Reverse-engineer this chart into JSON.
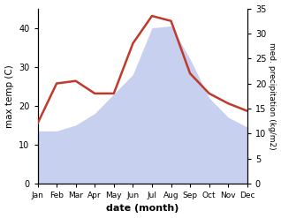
{
  "months": [
    "Jan",
    "Feb",
    "Mar",
    "Apr",
    "May",
    "Jun",
    "Jul",
    "Aug",
    "Sep",
    "Oct",
    "Nov",
    "Dec"
  ],
  "max_temp": [
    13.5,
    13.5,
    15.0,
    18.0,
    23.0,
    28.0,
    40.0,
    40.5,
    32.0,
    22.0,
    17.0,
    14.5
  ],
  "precipitation": [
    12.0,
    20.0,
    20.5,
    18.0,
    18.0,
    28.0,
    33.5,
    32.5,
    22.0,
    18.0,
    16.0,
    14.5
  ],
  "temp_color": "#c0392b",
  "precip_fill_color": "#c8d0f0",
  "ylabel_left": "max temp (C)",
  "ylabel_right": "med. precipitation (kg/m2)",
  "xlabel": "date (month)",
  "ylim_left": [
    0,
    45
  ],
  "ylim_right": [
    0,
    35
  ],
  "yticks_left": [
    0,
    10,
    20,
    30,
    40
  ],
  "yticks_right": [
    0,
    5,
    10,
    15,
    20,
    25,
    30,
    35
  ],
  "background_color": "#ffffff"
}
